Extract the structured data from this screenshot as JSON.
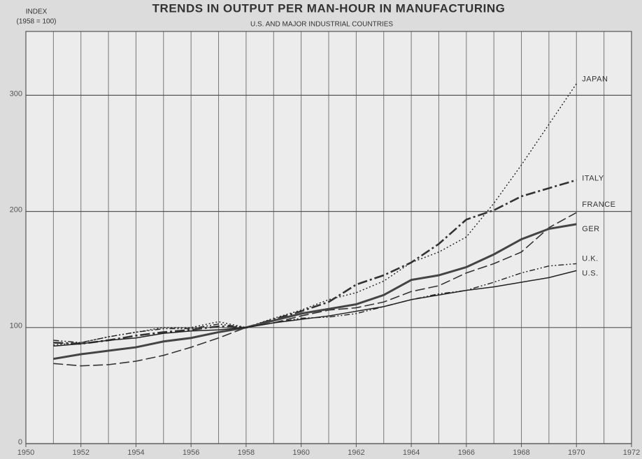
{
  "chart_data": {
    "type": "line",
    "title": "TRENDS IN OUTPUT PER MAN-HOUR IN MANUFACTURING",
    "subtitle": "U.S. AND MAJOR INDUSTRIAL COUNTRIES",
    "ylabel": [
      "INDEX",
      "(1958 = 100)"
    ],
    "x": [
      1951,
      1952,
      1953,
      1954,
      1955,
      1956,
      1957,
      1958,
      1959,
      1960,
      1961,
      1962,
      1963,
      1964,
      1965,
      1966,
      1967,
      1968,
      1969,
      1970
    ],
    "series": [
      {
        "name": "JAPAN",
        "color": "#222222",
        "style": "dotted",
        "values": [
          85,
          87,
          92,
          96,
          100,
          100,
          105,
          100,
          108,
          115,
          124,
          130,
          140,
          156,
          165,
          178,
          207,
          240,
          275,
          310
        ]
      },
      {
        "name": "ITALY",
        "color": "#333333",
        "style": "dash-dot",
        "values": [
          87,
          86,
          89,
          93,
          96,
          98,
          101,
          100,
          107,
          114,
          122,
          137,
          145,
          156,
          172,
          193,
          201,
          213,
          220,
          227
        ]
      },
      {
        "name": "FRANCE",
        "color": "#333333",
        "style": "long-dash",
        "values": [
          69,
          67,
          68,
          71,
          76,
          83,
          91,
          100,
          104,
          110,
          115,
          117,
          122,
          131,
          136,
          147,
          155,
          165,
          186,
          199
        ]
      },
      {
        "name": "GER",
        "color": "#444444",
        "style": "thick-solid",
        "values": [
          73,
          77,
          80,
          83,
          88,
          91,
          96,
          100,
          106,
          112,
          116,
          120,
          128,
          141,
          145,
          152,
          163,
          176,
          185,
          189
        ]
      },
      {
        "name": "U.K.",
        "color": "#222222",
        "style": "dash-dot-dot",
        "values": [
          89,
          87,
          92,
          96,
          99,
          99,
          103,
          100,
          104,
          108,
          109,
          112,
          118,
          124,
          129,
          132,
          139,
          147,
          153,
          155
        ]
      },
      {
        "name": "U.S.",
        "color": "#222222",
        "style": "solid",
        "values": [
          84,
          86,
          89,
          91,
          95,
          97,
          98,
          100,
          104,
          107,
          110,
          114,
          118,
          124,
          128,
          132,
          135,
          139,
          143,
          149
        ]
      }
    ],
    "xlim": [
      1950,
      1972
    ],
    "xticks": [
      1950,
      1952,
      1954,
      1956,
      1958,
      1960,
      1962,
      1964,
      1966,
      1968,
      1970,
      1972
    ],
    "x_minor_gridlines": [
      1951,
      1953,
      1955,
      1957,
      1959,
      1961,
      1963,
      1965,
      1967,
      1969,
      1971
    ],
    "ylim": [
      0,
      355
    ],
    "yticks": [
      0,
      100,
      200,
      300
    ],
    "grid": true
  }
}
